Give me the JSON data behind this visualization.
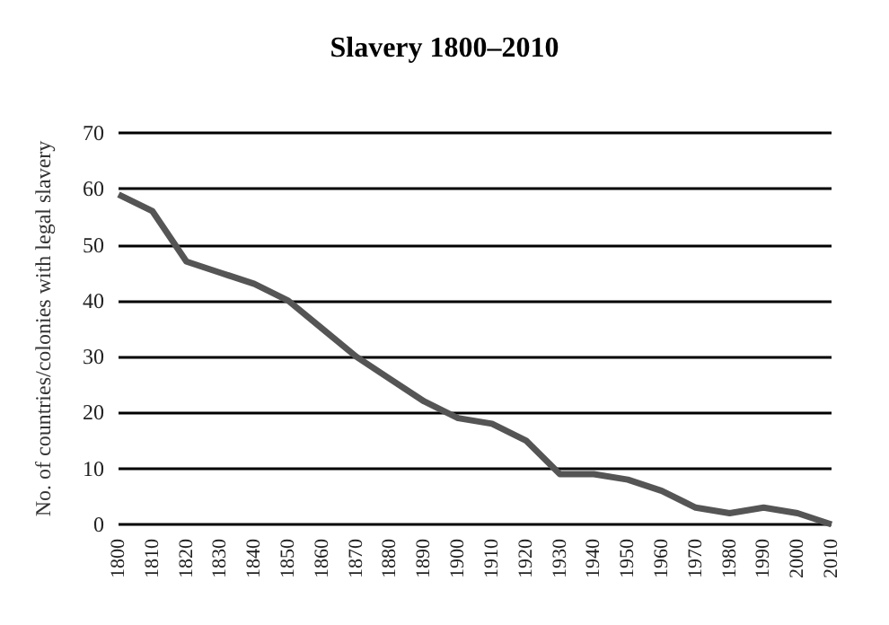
{
  "chart_data": {
    "type": "line",
    "title": "Slavery 1800–2010",
    "ylabel": "No. of countries/colonies with legal slavery",
    "categories": [
      "1800",
      "1810",
      "1820",
      "1830",
      "1840",
      "1850",
      "1860",
      "1870",
      "1880",
      "1890",
      "1900",
      "1910",
      "1920",
      "1930",
      "1940",
      "1950",
      "1960",
      "1970",
      "1980",
      "1990",
      "2000",
      "2010"
    ],
    "series": [
      {
        "color": "#555555",
        "values": [
          59,
          56,
          47,
          45,
          43,
          40,
          35,
          30,
          26,
          22,
          19,
          18,
          15,
          9,
          9,
          8,
          6,
          3,
          2,
          3,
          2,
          0
        ]
      }
    ],
    "ylim": [
      0,
      70
    ],
    "yticks": [
      0,
      10,
      20,
      30,
      40,
      50,
      60,
      70
    ],
    "grid": "y",
    "marker": "none",
    "line_style": "solid"
  }
}
